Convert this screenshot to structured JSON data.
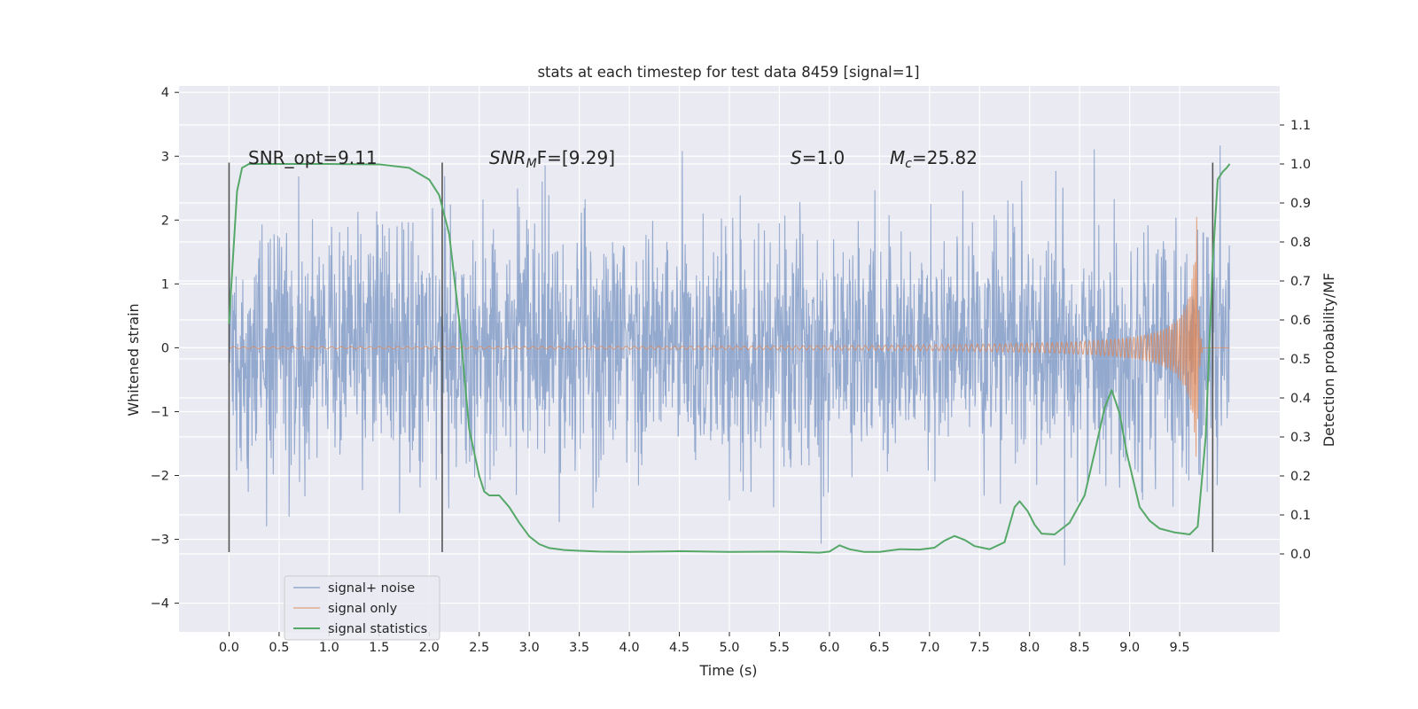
{
  "chart_data": {
    "type": "line",
    "title": "stats at each timestep for test data 8459 [signal=1]",
    "xlabel": "Time (s)",
    "ylabel_left": "Whitened strain",
    "ylabel_right": "Detection probability/MF",
    "xlim": [
      -0.5,
      10.5
    ],
    "ylim_left": [
      -4.45,
      4.1
    ],
    "ylim_right": [
      -0.2,
      1.2
    ],
    "x_ticks": [
      "0.0",
      "0.5",
      "1.0",
      "1.5",
      "2.0",
      "2.5",
      "3.0",
      "3.5",
      "4.0",
      "4.5",
      "5.0",
      "5.5",
      "6.0",
      "6.5",
      "7.0",
      "7.5",
      "8.0",
      "8.5",
      "9.0",
      "9.5"
    ],
    "y_ticks_left": [
      "−4",
      "−3",
      "−2",
      "−1",
      "0",
      "1",
      "2",
      "3",
      "4"
    ],
    "y_ticks_right": [
      "0.0",
      "0.1",
      "0.2",
      "0.3",
      "0.4",
      "0.5",
      "0.6",
      "0.7",
      "0.8",
      "0.9",
      "1.0",
      "1.1"
    ],
    "grid": true,
    "legend_position": "lower-left",
    "vertical_markers": [
      0.0,
      2.13,
      9.83
    ],
    "annotations": {
      "snr_opt": "SNR_opt=9.11",
      "snr_mf_main": "SNR",
      "snr_mf_sub": "M",
      "snr_mf_rest": "F=[9.29]",
      "s_italic": "S",
      "s_rest": "=1.0",
      "mc_main": "M",
      "mc_sub": "c",
      "mc_rest": "=25.82"
    },
    "series": [
      {
        "name": "signal+ noise",
        "color": "#4c72b0",
        "description": "whitened strain, noise envelope",
        "x_range": [
          0.0,
          10.0
        ],
        "typical_amplitude": 1.5,
        "max": 3.7,
        "min": -4.05
      },
      {
        "name": "signal only",
        "color": "#dd8452",
        "description": "chirp signal",
        "chirp_peak_time": 9.67,
        "chirp_peak_amplitude": 2.05
      },
      {
        "name": "signal statistics",
        "color": "#55a868",
        "x": [
          0.0,
          0.03,
          0.08,
          0.13,
          0.2,
          0.3,
          0.5,
          1.0,
          1.5,
          1.8,
          2.0,
          2.1,
          2.2,
          2.3,
          2.4,
          2.5,
          2.55,
          2.6,
          2.7,
          2.8,
          2.9,
          3.0,
          3.1,
          3.2,
          3.35,
          3.5,
          3.7,
          4.0,
          4.5,
          5.0,
          5.5,
          5.9,
          6.0,
          6.1,
          6.2,
          6.35,
          6.5,
          6.7,
          6.9,
          7.05,
          7.15,
          7.25,
          7.35,
          7.45,
          7.6,
          7.75,
          7.85,
          7.9,
          7.98,
          8.05,
          8.12,
          8.25,
          8.4,
          8.55,
          8.65,
          8.75,
          8.82,
          8.9,
          8.97,
          9.1,
          9.2,
          9.3,
          9.45,
          9.6,
          9.68,
          9.76,
          9.83,
          9.88,
          9.93,
          9.97,
          10.0
        ],
        "y": [
          0.59,
          0.72,
          0.93,
          0.99,
          1.0,
          1.0,
          1.0,
          1.0,
          0.999,
          0.99,
          0.96,
          0.92,
          0.82,
          0.6,
          0.32,
          0.2,
          0.16,
          0.15,
          0.15,
          0.12,
          0.08,
          0.045,
          0.025,
          0.015,
          0.01,
          0.008,
          0.006,
          0.005,
          0.007,
          0.005,
          0.006,
          0.003,
          0.006,
          0.022,
          0.012,
          0.005,
          0.005,
          0.012,
          0.011,
          0.016,
          0.034,
          0.046,
          0.036,
          0.02,
          0.012,
          0.03,
          0.12,
          0.135,
          0.11,
          0.075,
          0.052,
          0.05,
          0.08,
          0.15,
          0.26,
          0.375,
          0.42,
          0.36,
          0.26,
          0.12,
          0.085,
          0.065,
          0.055,
          0.05,
          0.07,
          0.3,
          0.75,
          0.96,
          0.98,
          0.99,
          1.0
        ]
      }
    ]
  }
}
